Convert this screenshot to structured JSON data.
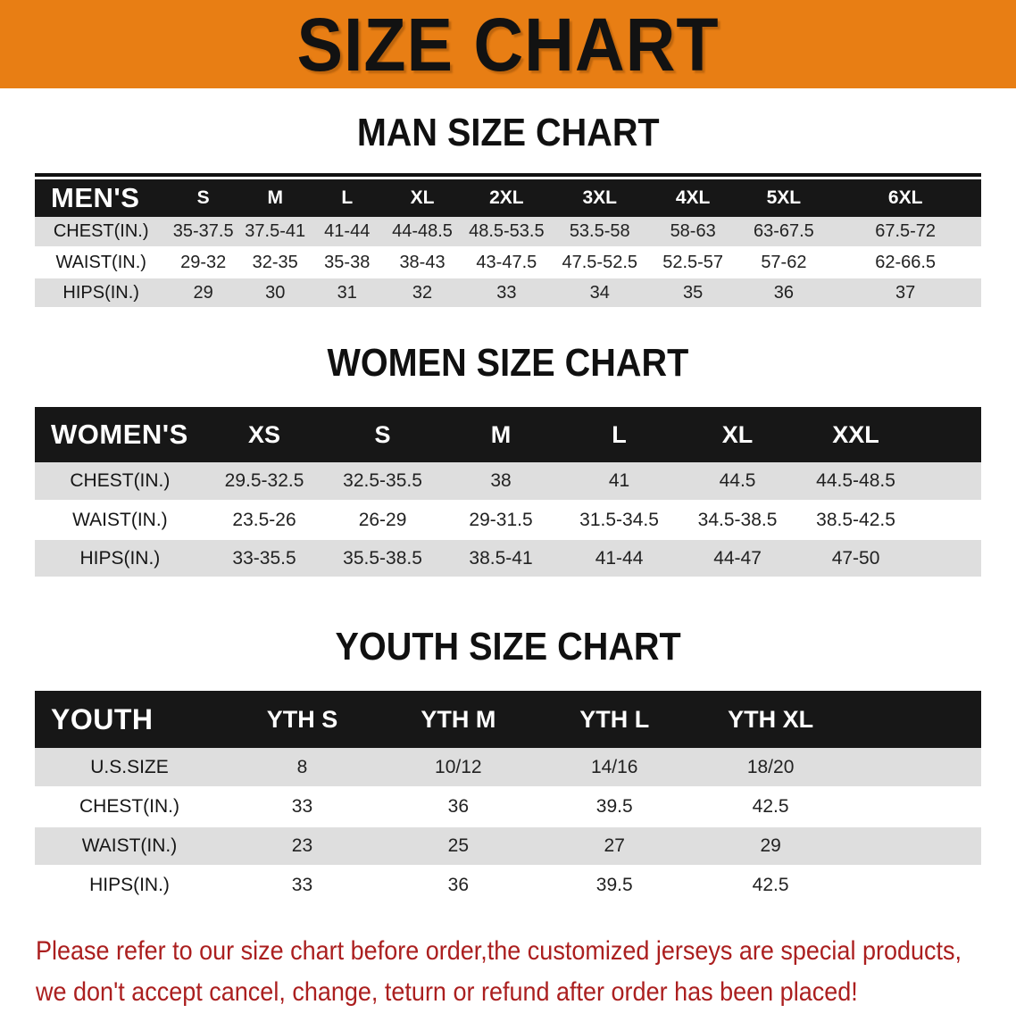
{
  "colors": {
    "banner_bg": "#e87e14",
    "table_header_bg": "#171717",
    "row_shade": "#dedede",
    "note_text": "#ab1f1f"
  },
  "banner": {
    "title": "SIZE CHART"
  },
  "tables": {
    "men": {
      "title": "MAN SIZE CHART",
      "header": {
        "label": "MEN'S",
        "sizes": [
          "S",
          "M",
          "L",
          "XL",
          "2XL",
          "3XL",
          "4XL",
          "5XL",
          "6XL"
        ]
      },
      "rows": [
        {
          "label": "CHEST(IN.)",
          "values": [
            "35-37.5",
            "37.5-41",
            "41-44",
            "44-48.5",
            "48.5-53.5",
            "53.5-58",
            "58-63",
            "63-67.5",
            "67.5-72"
          ]
        },
        {
          "label": "WAIST(IN.)",
          "values": [
            "29-32",
            "32-35",
            "35-38",
            "38-43",
            "43-47.5",
            "47.5-52.5",
            "52.5-57",
            "57-62",
            "62-66.5"
          ]
        },
        {
          "label": "HIPS(IN.)",
          "values": [
            "29",
            "30",
            "31",
            "32",
            "33",
            "34",
            "35",
            "36",
            "37"
          ]
        }
      ]
    },
    "women": {
      "title": "WOMEN SIZE CHART",
      "header": {
        "label": "WOMEN'S",
        "sizes": [
          "XS",
          "S",
          "M",
          "L",
          "XL",
          "XXL"
        ]
      },
      "rows": [
        {
          "label": "CHEST(IN.)",
          "values": [
            "29.5-32.5",
            "32.5-35.5",
            "38",
            "41",
            "44.5",
            "44.5-48.5"
          ]
        },
        {
          "label": "WAIST(IN.)",
          "values": [
            "23.5-26",
            "26-29",
            "29-31.5",
            "31.5-34.5",
            "34.5-38.5",
            "38.5-42.5"
          ]
        },
        {
          "label": "HIPS(IN.)",
          "values": [
            "33-35.5",
            "35.5-38.5",
            "38.5-41",
            "41-44",
            "44-47",
            "47-50"
          ]
        }
      ]
    },
    "youth": {
      "title": "YOUTH SIZE CHART",
      "header": {
        "label": "YOUTH",
        "sizes": [
          "YTH S",
          "YTH M",
          "YTH L",
          "YTH XL"
        ]
      },
      "rows": [
        {
          "label": "U.S.SIZE",
          "values": [
            "8",
            "10/12",
            "14/16",
            "18/20"
          ]
        },
        {
          "label": "CHEST(IN.)",
          "values": [
            "33",
            "36",
            "39.5",
            "42.5"
          ]
        },
        {
          "label": "WAIST(IN.)",
          "values": [
            "23",
            "25",
            "27",
            "29"
          ]
        },
        {
          "label": "HIPS(IN.)",
          "values": [
            "33",
            "36",
            "39.5",
            "42.5"
          ]
        }
      ]
    }
  },
  "note": {
    "line1": "Please refer to our size chart before order,the customized jerseys are special products,",
    "line2": "we don't accept cancel, change, teturn or refund after order has been placed!"
  }
}
